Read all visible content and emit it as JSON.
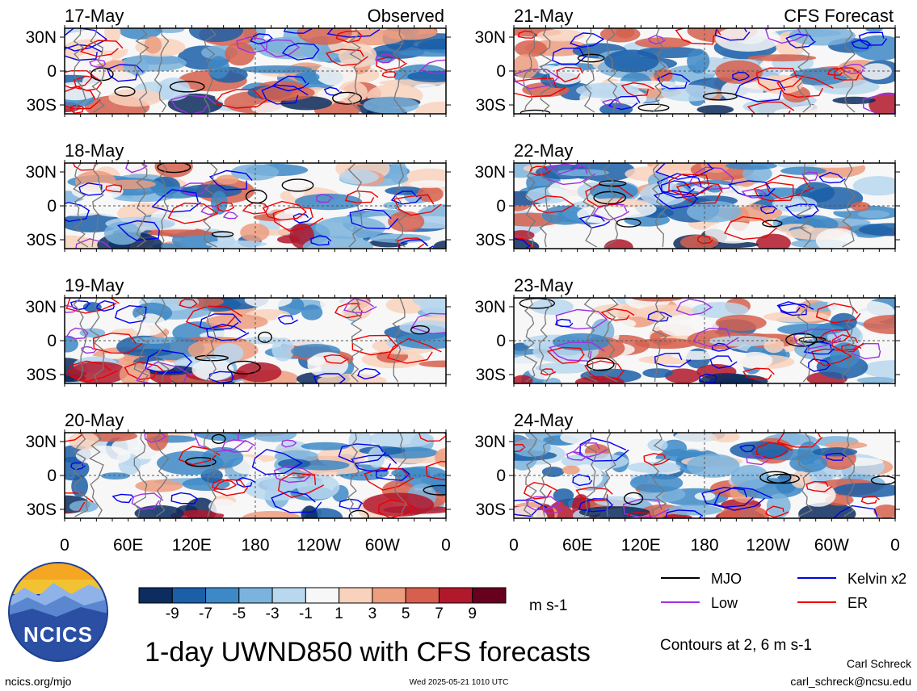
{
  "chart_data": {
    "type": "heatmap",
    "title": "1-day UWND850 with CFS forecasts",
    "panel_groups": [
      {
        "label": "Observed",
        "dates": [
          "17-May",
          "18-May",
          "19-May",
          "20-May"
        ]
      },
      {
        "label": "CFS Forecast",
        "dates": [
          "21-May",
          "22-May",
          "23-May",
          "24-May"
        ]
      }
    ],
    "x_ticks": [
      "0",
      "60E",
      "120E",
      "180",
      "120W",
      "60W",
      "0"
    ],
    "y_ticks": [
      "30N",
      "0",
      "30S"
    ],
    "colorbar": {
      "ticks": [
        "-9",
        "-7",
        "-5",
        "-3",
        "-1",
        "1",
        "3",
        "5",
        "7",
        "9"
      ],
      "units": "m s-1",
      "colors": [
        "#0c2d5e",
        "#1b5fa8",
        "#3d88c6",
        "#7bb3dc",
        "#b9d7ee",
        "#f7f7f7",
        "#f9d2bd",
        "#ec9e7f",
        "#d6604d",
        "#b2182b",
        "#67001f"
      ]
    },
    "legend": [
      {
        "label": "MJO",
        "color": "#000000"
      },
      {
        "label": "Kelvin x2",
        "color": "#0000ee"
      },
      {
        "label": "Low",
        "color": "#a030e0"
      },
      {
        "label": "ER",
        "color": "#ee0000"
      }
    ],
    "contour_note": "Contours at 2, 6 m s-1"
  },
  "footer": {
    "logo_text": "NCICS",
    "site": "ncics.org/mjo",
    "timestamp": "Wed 2025-05-21 1010 UTC",
    "author": "Carl Schreck",
    "email": "carl_schreck@ncsu.edu"
  }
}
